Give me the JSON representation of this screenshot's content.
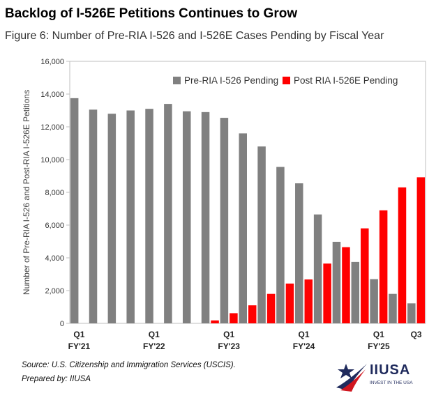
{
  "header": {
    "title": "Backlog of I-526E Petitions Continues to Grow",
    "figure_caption": "Figure 6: Number of Pre-RIA I-526 and I-526E Cases Pending by Fiscal Year"
  },
  "footer": {
    "source": "Source: U.S. Citizenship and Immigration Services (USCIS).",
    "prepared_by": "Prepared by: IIUSA"
  },
  "logo": {
    "name": "IIUSA",
    "tagline": "INVEST IN THE USA"
  },
  "colors": {
    "pre_ria": "#808080",
    "post_ria": "#ff0000",
    "logo_blue": "#1f2a5c",
    "logo_red": "#d0161f"
  },
  "chart_data": {
    "type": "bar",
    "title": "",
    "xlabel": "",
    "ylabel": "Number of Pre-RIA I-526 and Post-RIA I-526E Petitions",
    "ylim": [
      0,
      16000
    ],
    "yticks": [
      0,
      2000,
      4000,
      6000,
      8000,
      10000,
      12000,
      14000,
      16000
    ],
    "ytick_labels": [
      "0",
      "2,000",
      "4,000",
      "6,000",
      "8,000",
      "10,000",
      "12,000",
      "14,000",
      "16,000"
    ],
    "grid": false,
    "legend_position": "top-right",
    "categories": [
      "Q1 FY'21",
      "Q2 FY'21",
      "Q3 FY'21",
      "Q4 FY'21",
      "Q1 FY'22",
      "Q2 FY'22",
      "Q3 FY'22",
      "Q4 FY'22",
      "Q1 FY'23",
      "Q2 FY'23",
      "Q3 FY'23",
      "Q4 FY'23",
      "Q1 FY'24",
      "Q2 FY'24",
      "Q3 FY'24",
      "Q4 FY'24",
      "Q1 FY'25",
      "Q2 FY'25",
      "Q3 FY'25"
    ],
    "x_tick_labels": [
      {
        "index": 0,
        "line1": "Q1",
        "line2": "FY'21"
      },
      {
        "index": 4,
        "line1": "Q1",
        "line2": "FY'22"
      },
      {
        "index": 8,
        "line1": "Q1",
        "line2": "FY'23"
      },
      {
        "index": 12,
        "line1": "Q1",
        "line2": "FY'24"
      },
      {
        "index": 16,
        "line1": "Q1",
        "line2": "FY'25"
      },
      {
        "index": 18,
        "line1": "Q3",
        "line2": ""
      }
    ],
    "series": [
      {
        "name": "Pre-RIA I-526 Pending",
        "color": "#808080",
        "values": [
          13750,
          13050,
          12800,
          13000,
          13100,
          13400,
          12950,
          12900,
          12550,
          11600,
          10800,
          9550,
          8550,
          6650,
          4980,
          3750,
          2700,
          1800,
          1220
        ]
      },
      {
        "name": "Post RIA I-526E Pending",
        "color": "#ff0000",
        "values": [
          null,
          null,
          null,
          null,
          null,
          null,
          null,
          180,
          620,
          1100,
          1800,
          2430,
          2680,
          3650,
          4650,
          5800,
          6900,
          8300,
          8920
        ]
      }
    ]
  }
}
